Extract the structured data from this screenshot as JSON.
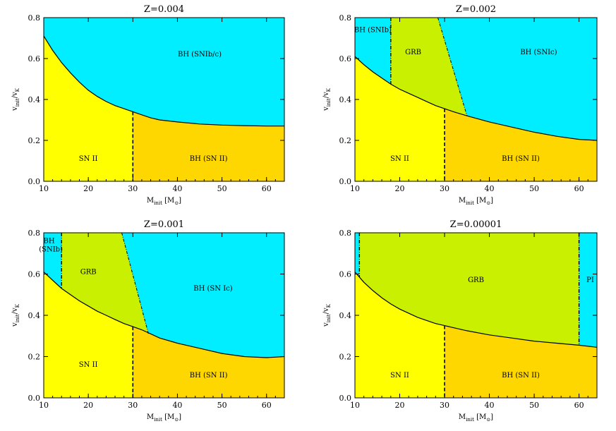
{
  "chart_data": [
    {
      "type": "area",
      "title": "Z=0.004",
      "xlabel_main": "M",
      "xlabel_sub": "init",
      "xlabel_unit": "[M",
      "xlabel_unit_sub": "⊙",
      "xlabel_unit_close": "]",
      "ylabel_v": "v",
      "ylabel_init": "init",
      "ylabel_sep": "/v",
      "ylabel_k": "K",
      "xlim": [
        10,
        64
      ],
      "ylim": [
        0,
        0.8
      ],
      "xticks": [
        "10",
        "20",
        "30",
        "40",
        "50",
        "60"
      ],
      "yticks": [
        "0.0",
        "0.2",
        "0.4",
        "0.6",
        "0.8"
      ],
      "boundary_curve": {
        "x": [
          10,
          12,
          14,
          16,
          18,
          20,
          22,
          24,
          26,
          28,
          30,
          32,
          34,
          36,
          40,
          45,
          50,
          55,
          60,
          64
        ],
        "y": [
          0.71,
          0.64,
          0.58,
          0.53,
          0.485,
          0.445,
          0.415,
          0.39,
          0.37,
          0.355,
          0.34,
          0.325,
          0.31,
          0.3,
          0.29,
          0.28,
          0.275,
          0.272,
          0.27,
          0.27
        ]
      },
      "mass_divider": 30,
      "regions": [
        {
          "label": "BH (SNIb/c)",
          "x": 45,
          "y": 0.61
        },
        {
          "label": "SN II",
          "x": 20,
          "y": 0.1
        },
        {
          "label": "BH (SN II)",
          "x": 47,
          "y": 0.1
        }
      ],
      "grb_zone": null,
      "left_strip": null,
      "right_strip": null
    },
    {
      "type": "area",
      "title": "Z=0.002",
      "xlabel_main": "M",
      "xlabel_sub": "init",
      "xlabel_unit": "[M",
      "xlabel_unit_sub": "⊙",
      "xlabel_unit_close": "]",
      "ylabel_v": "v",
      "ylabel_init": "init",
      "ylabel_sep": "/v",
      "ylabel_k": "K",
      "xlim": [
        10,
        64
      ],
      "ylim": [
        0,
        0.8
      ],
      "xticks": [
        "10",
        "20",
        "30",
        "40",
        "50",
        "60"
      ],
      "yticks": [
        "0.0",
        "0.2",
        "0.4",
        "0.6",
        "0.8"
      ],
      "boundary_curve": {
        "x": [
          10,
          12,
          14,
          16,
          18,
          20,
          22,
          24,
          26,
          28,
          30,
          32,
          35,
          40,
          45,
          50,
          55,
          60,
          64
        ],
        "y": [
          0.61,
          0.57,
          0.535,
          0.505,
          0.475,
          0.45,
          0.43,
          0.41,
          0.39,
          0.37,
          0.355,
          0.34,
          0.32,
          0.29,
          0.265,
          0.24,
          0.22,
          0.205,
          0.2
        ]
      },
      "mass_divider": 30,
      "regions": [
        {
          "label": "BH (SNIb)",
          "x": 14,
          "y": 0.73
        },
        {
          "label": "GRB",
          "x": 23,
          "y": 0.62
        },
        {
          "label": "BH (SNIc)",
          "x": 51,
          "y": 0.62
        },
        {
          "label": "SN II",
          "x": 20,
          "y": 0.1
        },
        {
          "label": "BH (SN II)",
          "x": 47,
          "y": 0.1
        }
      ],
      "grb_zone": {
        "left_x": 18,
        "right_top": [
          28.5,
          0.8
        ],
        "right_bottom": [
          35,
          0.32
        ]
      },
      "left_strip": {
        "x": [
          10,
          18
        ]
      },
      "right_strip": null
    },
    {
      "type": "area",
      "title": "Z=0.001",
      "xlabel_main": "M",
      "xlabel_sub": "init",
      "xlabel_unit": "[M",
      "xlabel_unit_sub": "⊙",
      "xlabel_unit_close": "]",
      "ylabel_v": "v",
      "ylabel_init": "init",
      "ylabel_sep": "/v",
      "ylabel_k": "K",
      "xlim": [
        10,
        64
      ],
      "ylim": [
        0,
        0.8
      ],
      "xticks": [
        "10",
        "20",
        "30",
        "40",
        "50",
        "60"
      ],
      "yticks": [
        "0.0",
        "0.2",
        "0.4",
        "0.6",
        "0.8"
      ],
      "boundary_curve": {
        "x": [
          10,
          12,
          14,
          16,
          18,
          20,
          22,
          24,
          26,
          28,
          30,
          32,
          34,
          36,
          40,
          45,
          50,
          55,
          60,
          64
        ],
        "y": [
          0.61,
          0.57,
          0.53,
          0.5,
          0.47,
          0.445,
          0.42,
          0.4,
          0.38,
          0.36,
          0.345,
          0.33,
          0.31,
          0.29,
          0.265,
          0.24,
          0.215,
          0.2,
          0.195,
          0.2
        ]
      },
      "mass_divider": 30,
      "regions": [
        {
          "label": "BH",
          "x": 11.2,
          "y": 0.75
        },
        {
          "label": "(SNIb)",
          "x": 11.6,
          "y": 0.71
        },
        {
          "label": "GRB",
          "x": 20,
          "y": 0.6
        },
        {
          "label": "BH (SN Ic)",
          "x": 48,
          "y": 0.52
        },
        {
          "label": "SN II",
          "x": 20,
          "y": 0.15
        },
        {
          "label": "BH (SN II)",
          "x": 47,
          "y": 0.1
        }
      ],
      "grb_zone": {
        "left_x": 14,
        "right_top": [
          27.5,
          0.8
        ],
        "right_bottom": [
          33.5,
          0.31
        ]
      },
      "left_strip": {
        "x": [
          10,
          14
        ]
      },
      "right_strip": null
    },
    {
      "type": "area",
      "title": "Z=0.00001",
      "xlabel_main": "M",
      "xlabel_sub": "init",
      "xlabel_unit": "[M",
      "xlabel_unit_sub": "⊙",
      "xlabel_unit_close": "]",
      "ylabel_v": "v",
      "ylabel_init": "init",
      "ylabel_sep": "/v",
      "ylabel_k": "K",
      "xlim": [
        10,
        64
      ],
      "ylim": [
        0,
        0.8
      ],
      "xticks": [
        "10",
        "20",
        "30",
        "40",
        "50",
        "60"
      ],
      "yticks": [
        "0.0",
        "0.2",
        "0.4",
        "0.6",
        "0.8"
      ],
      "boundary_curve": {
        "x": [
          10,
          12,
          14,
          16,
          18,
          20,
          22,
          24,
          26,
          28,
          30,
          32,
          35,
          40,
          45,
          50,
          55,
          60,
          64
        ],
        "y": [
          0.61,
          0.56,
          0.52,
          0.485,
          0.455,
          0.43,
          0.41,
          0.39,
          0.375,
          0.36,
          0.35,
          0.34,
          0.325,
          0.305,
          0.29,
          0.275,
          0.265,
          0.255,
          0.245
        ]
      },
      "mass_divider": 30,
      "regions": [
        {
          "label": "GRB",
          "x": 37,
          "y": 0.56
        },
        {
          "label": "PI",
          "x": 62.5,
          "y": 0.56
        },
        {
          "label": "SN II",
          "x": 20,
          "y": 0.1
        },
        {
          "label": "BH (SN II)",
          "x": 47,
          "y": 0.1
        }
      ],
      "grb_zone": {
        "left_x": 11,
        "right_x": 60
      },
      "left_strip": {
        "x": [
          10,
          11
        ]
      },
      "right_strip": {
        "x": [
          60,
          64
        ]
      }
    }
  ],
  "colors": {
    "sn2": "#ffff00",
    "bh_sn2": "#ffd700",
    "bh_snic": "#00eeff",
    "grb": "#c8f000",
    "line": "#000000"
  }
}
